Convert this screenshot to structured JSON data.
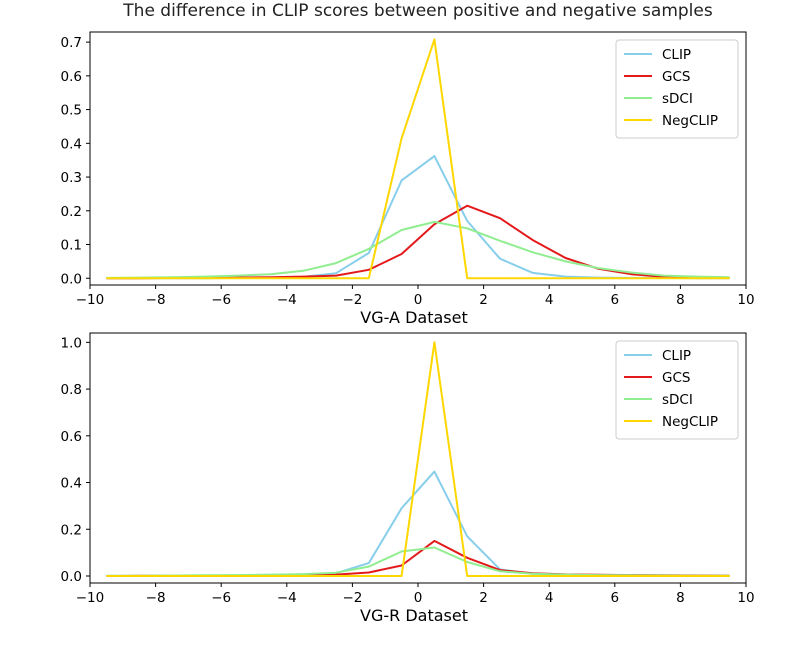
{
  "figure": {
    "title": "The difference in CLIP scores between positive and negative samples"
  },
  "chart_data": [
    {
      "type": "line",
      "title": "The difference in CLIP scores between positive and negative samples",
      "xlabel": "VG-A Dataset",
      "ylabel": "",
      "xlim": [
        -10,
        10
      ],
      "ylim": [
        -0.02,
        0.73
      ],
      "xticks": [
        "−10",
        "−8",
        "−6",
        "−4",
        "−2",
        "0",
        "2",
        "4",
        "6",
        "8",
        "10"
      ],
      "xtick_values": [
        -10,
        -8,
        -6,
        -4,
        -2,
        0,
        2,
        4,
        6,
        8,
        10
      ],
      "yticks": [
        "0.0",
        "0.1",
        "0.2",
        "0.3",
        "0.4",
        "0.5",
        "0.6",
        "0.7"
      ],
      "ytick_values": [
        0,
        0.1,
        0.2,
        0.3,
        0.4,
        0.5,
        0.6,
        0.7
      ],
      "legend": "top-right",
      "grid": false,
      "x": [
        -9.5,
        -8.5,
        -7.5,
        -6.5,
        -5.5,
        -4.5,
        -3.5,
        -2.5,
        -1.5,
        -0.5,
        0.5,
        1.5,
        2.5,
        3.5,
        4.5,
        5.5,
        6.5,
        7.5,
        8.5,
        9.5
      ],
      "series": [
        {
          "name": "CLIP",
          "color": "#87ceeb",
          "values": [
            0,
            0,
            0,
            0,
            0.001,
            0.002,
            0.004,
            0.015,
            0.075,
            0.29,
            0.362,
            0.17,
            0.058,
            0.016,
            0.005,
            0.002,
            0.001,
            0.001,
            0,
            0
          ]
        },
        {
          "name": "GCS",
          "color": "#e31a1c",
          "values": [
            0,
            0,
            0.001,
            0.001,
            0.002,
            0.003,
            0.005,
            0.008,
            0.025,
            0.072,
            0.16,
            0.215,
            0.178,
            0.113,
            0.06,
            0.028,
            0.012,
            0.004,
            0.002,
            0.001
          ]
        },
        {
          "name": "sDCI",
          "color": "#90ee90",
          "values": [
            0.001,
            0.002,
            0.003,
            0.005,
            0.008,
            0.012,
            0.022,
            0.045,
            0.087,
            0.143,
            0.167,
            0.148,
            0.111,
            0.077,
            0.05,
            0.03,
            0.017,
            0.008,
            0.005,
            0.003
          ]
        },
        {
          "name": "NegCLIP",
          "color": "#ffd700",
          "values": [
            0,
            0,
            0,
            0,
            0,
            0,
            0,
            0,
            0,
            0.415,
            0.708,
            0,
            0,
            0,
            0,
            0,
            0,
            0,
            0,
            0
          ]
        }
      ]
    },
    {
      "type": "line",
      "xlabel": "VG-R Dataset",
      "ylabel": "",
      "xlim": [
        -10,
        10
      ],
      "ylim": [
        -0.03,
        1.04
      ],
      "xticks": [
        "−10",
        "−8",
        "−6",
        "−4",
        "−2",
        "0",
        "2",
        "4",
        "6",
        "8",
        "10"
      ],
      "xtick_values": [
        -10,
        -8,
        -6,
        -4,
        -2,
        0,
        2,
        4,
        6,
        8,
        10
      ],
      "yticks": [
        "0.0",
        "0.2",
        "0.4",
        "0.6",
        "0.8",
        "1.0"
      ],
      "ytick_values": [
        0,
        0.2,
        0.4,
        0.6,
        0.8,
        1.0
      ],
      "legend": "top-right",
      "grid": false,
      "x": [
        -9.5,
        -8.5,
        -7.5,
        -6.5,
        -5.5,
        -4.5,
        -3.5,
        -2.5,
        -1.5,
        -0.5,
        0.5,
        1.5,
        2.5,
        3.5,
        4.5,
        5.5,
        6.5,
        7.5,
        8.5,
        9.5
      ],
      "series": [
        {
          "name": "CLIP",
          "color": "#87ceeb",
          "values": [
            0,
            0,
            0,
            0.001,
            0.002,
            0.003,
            0.005,
            0.012,
            0.055,
            0.29,
            0.447,
            0.17,
            0.028,
            0.01,
            0.006,
            0.004,
            0.003,
            0.002,
            0.001,
            0.001
          ]
        },
        {
          "name": "GCS",
          "color": "#e31a1c",
          "values": [
            0,
            0.001,
            0.001,
            0.001,
            0.002,
            0.003,
            0.004,
            0.006,
            0.015,
            0.045,
            0.15,
            0.078,
            0.025,
            0.012,
            0.007,
            0.005,
            0.004,
            0.003,
            0.002,
            0.001
          ]
        },
        {
          "name": "sDCI",
          "color": "#90ee90",
          "values": [
            0.001,
            0.001,
            0.002,
            0.003,
            0.004,
            0.006,
            0.008,
            0.014,
            0.04,
            0.105,
            0.122,
            0.06,
            0.02,
            0.01,
            0.006,
            0.004,
            0.003,
            0.002,
            0.001,
            0.001
          ]
        },
        {
          "name": "NegCLIP",
          "color": "#ffd700",
          "values": [
            0,
            0,
            0,
            0,
            0,
            0,
            0,
            0,
            0,
            0,
            1.0,
            0,
            0,
            0,
            0,
            0,
            0,
            0,
            0,
            0
          ]
        }
      ]
    }
  ]
}
